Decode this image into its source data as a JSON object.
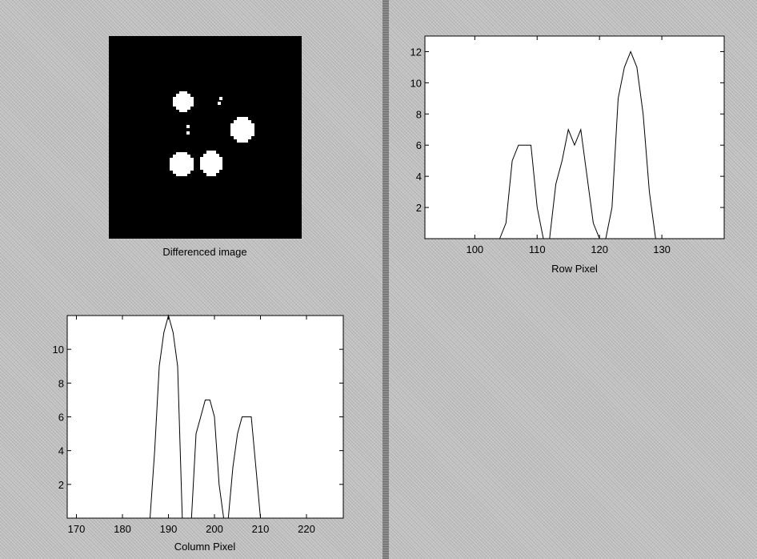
{
  "image_caption": "Differenced image",
  "chart_data": [
    {
      "type": "line",
      "name_in_view": "row-profile",
      "title": "",
      "xlabel": "Row Pixel",
      "ylabel": "",
      "xlim": [
        92,
        140
      ],
      "ylim": [
        0,
        13
      ],
      "xticks": [
        100,
        110,
        120,
        130
      ],
      "yticks": [
        2,
        4,
        6,
        8,
        10,
        12
      ],
      "grid": false,
      "series": [
        {
          "x": [
            104,
            105,
            106,
            107,
            108,
            109,
            110,
            111,
            112,
            113,
            114,
            115,
            116,
            117,
            118,
            119,
            120,
            121,
            122,
            123,
            124,
            125,
            126,
            127,
            128,
            129
          ],
          "y": [
            0,
            1,
            5,
            6,
            6,
            6,
            2,
            0,
            0,
            3.5,
            5,
            7,
            6,
            7,
            4,
            1,
            0,
            0,
            2,
            9,
            11,
            12,
            11,
            8,
            3,
            0
          ]
        }
      ]
    },
    {
      "type": "line",
      "name_in_view": "column-profile",
      "title": "",
      "xlabel": "Column Pixel",
      "ylabel": "",
      "xlim": [
        168,
        228
      ],
      "ylim": [
        0,
        12
      ],
      "xticks": [
        170,
        180,
        190,
        200,
        210,
        220
      ],
      "yticks": [
        2,
        4,
        6,
        8,
        10
      ],
      "grid": false,
      "series": [
        {
          "x": [
            186,
            187,
            188,
            189,
            190,
            191,
            192,
            193,
            194,
            195,
            196,
            197,
            198,
            199,
            200,
            201,
            202,
            203,
            204,
            205,
            206,
            207,
            208,
            209,
            210
          ],
          "y": [
            0,
            4,
            9,
            11,
            12,
            11,
            9,
            0,
            0,
            0,
            5,
            6,
            7,
            7,
            6,
            2,
            0,
            0,
            3,
            5,
            6,
            6,
            6,
            3,
            0
          ]
        }
      ]
    }
  ]
}
